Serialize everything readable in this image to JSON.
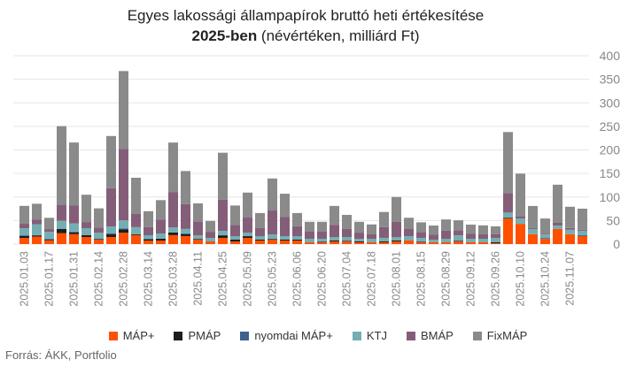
{
  "chart_data": {
    "type": "bar",
    "stacked": true,
    "title_line1": "Egyes lakossági állampapírok bruttó heti értékesítése",
    "title_line2_bold": "2025-ben",
    "title_line2_rest": " (névértéken, milliárd Ft)",
    "x_interval": "weekly, first bar 2025.01.03, tick label every 2nd week",
    "tick_labels": [
      "2025.01.03",
      "2025.01.17",
      "2025.01.31",
      "2025.02.14",
      "2025.02.28",
      "2025.03.14",
      "2025.03.28",
      "2025.04.11",
      "2025.04.25",
      "2025.05.09",
      "2025.05.23",
      "2025.06.06",
      "2025.06.20",
      "2025.07.04",
      "2025.07.18",
      "2025.08.01",
      "2025.08.15",
      "2025.08.29",
      "2025.09.12",
      "2025.09.26",
      "2025.10.10",
      "2025.10.24",
      "2025.11.07"
    ],
    "ylim": [
      0,
      400
    ],
    "yticks": [
      "0",
      "50",
      "100",
      "150",
      "200",
      "250",
      "300",
      "350",
      "400"
    ],
    "grid": true,
    "legend_position": "bottom",
    "series": [
      {
        "name": "MÁP+",
        "color": "#FF5000",
        "values": [
          13,
          16,
          8,
          23,
          21,
          15,
          9,
          15,
          24,
          19,
          7.5,
          7.5,
          19,
          17,
          9,
          5.6,
          13,
          5.6,
          13,
          7.5,
          9,
          7.5,
          7.5,
          3.8,
          3.8,
          5.6,
          5.6,
          3.8,
          3.8,
          3.8,
          5.6,
          7.5,
          3.8,
          3.8,
          3.8,
          5.6,
          3.8,
          3.8,
          1.9,
          54,
          43,
          21,
          11,
          32,
          21,
          17
        ]
      },
      {
        "name": "PMÁP",
        "color": "#1E1E1E",
        "values": [
          4.4,
          1.9,
          1.9,
          9.4,
          3.8,
          3.8,
          1.9,
          5.6,
          7.5,
          1.9,
          1.9,
          3.8,
          5.6,
          3.8,
          1.9,
          0,
          5.6,
          3.8,
          3.8,
          1.9,
          1.9,
          1.9,
          1.9,
          0,
          0,
          1.9,
          0,
          1.9,
          0,
          1.9,
          1.9,
          0,
          0,
          0,
          0,
          0,
          0,
          0,
          1.9,
          1.9,
          0,
          0,
          0,
          0,
          0,
          0
        ]
      },
      {
        "name": "nyomdai MÁP+",
        "color": "#3D6191",
        "values": [
          1.3,
          1.3,
          1.3,
          0,
          1.9,
          0,
          0,
          1.9,
          1.9,
          0,
          1.9,
          0,
          0,
          1.9,
          0,
          0,
          0,
          0,
          0,
          0,
          0,
          0,
          0,
          0,
          1.9,
          0,
          1.9,
          0,
          0,
          0,
          0,
          0,
          1.9,
          0,
          0,
          1.9,
          0,
          0,
          0,
          0,
          0,
          0,
          1.9,
          0,
          0,
          1.9
        ]
      },
      {
        "name": "KTJ",
        "color": "#75AEB2",
        "values": [
          15,
          23,
          15,
          17,
          17,
          15,
          13,
          15,
          17,
          15,
          7.5,
          11,
          11,
          9.4,
          7.5,
          7.5,
          9.4,
          7.5,
          7.5,
          7.5,
          9.4,
          7.5,
          7.5,
          7.5,
          5.6,
          7.5,
          7.5,
          5.6,
          7.5,
          7.5,
          7.5,
          9.4,
          7.5,
          5.6,
          7.5,
          11,
          7.5,
          7.5,
          9.4,
          11,
          11,
          11,
          7.5,
          7.5,
          9.4,
          9.4
        ]
      },
      {
        "name": "BMÁP",
        "color": "#845E79",
        "values": [
          9.4,
          9.4,
          5.6,
          34,
          38,
          13,
          11,
          81,
          152,
          28,
          17,
          30,
          75,
          53,
          30,
          13,
          66,
          24,
          32,
          17,
          51,
          41,
          21,
          15,
          15,
          26,
          17,
          13,
          9.4,
          23,
          32,
          15,
          12,
          11,
          17,
          11,
          11,
          9.4,
          7.5,
          41,
          5.6,
          1.9,
          1.9,
          5.6,
          3.8,
          1.9
        ]
      },
      {
        "name": "FixMÁP",
        "color": "#8A8A8A",
        "values": [
          38,
          34,
          24,
          167,
          134,
          58,
          41,
          111,
          165,
          77,
          34,
          41,
          105,
          70,
          38,
          23,
          100,
          41,
          53,
          32,
          68,
          49,
          28,
          21,
          21,
          40,
          30,
          23,
          21,
          32,
          53,
          24,
          21,
          19,
          24,
          21,
          19,
          19,
          17,
          130,
          90,
          47,
          32,
          81,
          45,
          45
        ]
      }
    ]
  },
  "source": "Forrás: ÁKK, Portfolio"
}
